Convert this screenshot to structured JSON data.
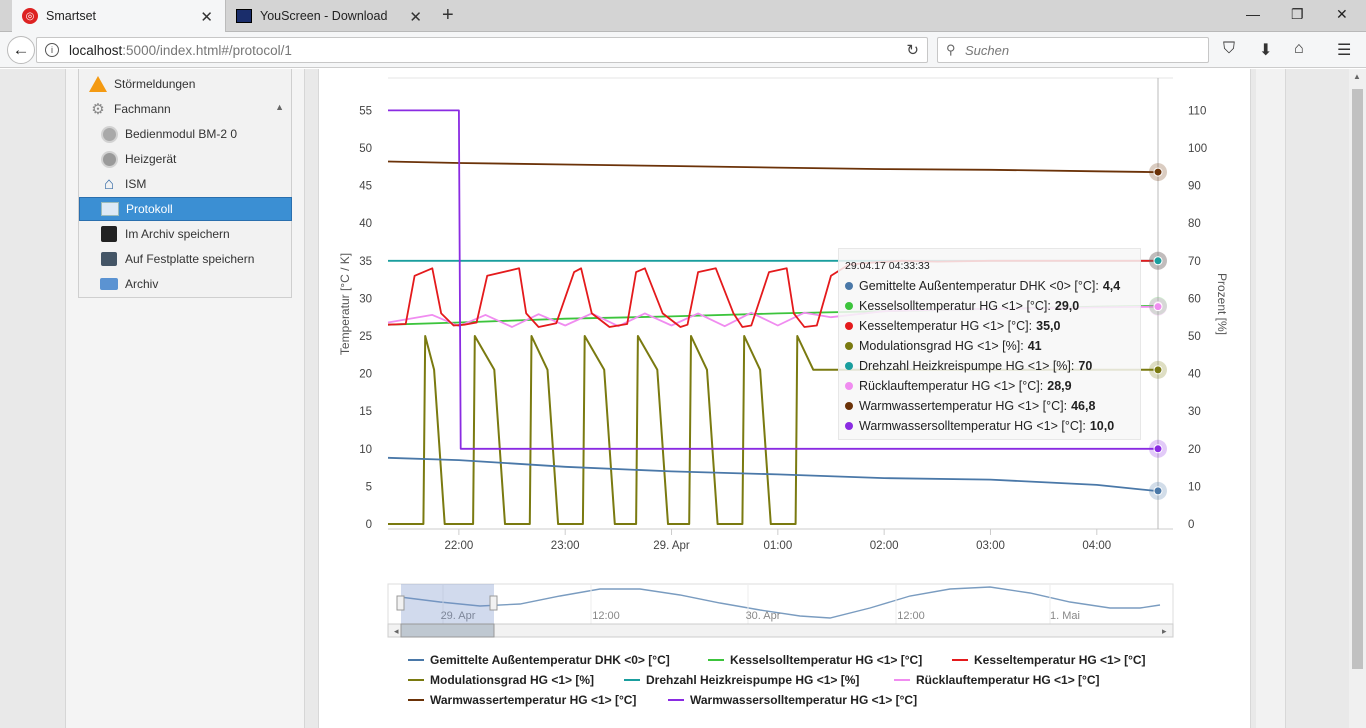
{
  "browser": {
    "tabs": [
      {
        "title": "Smartset",
        "active": true
      },
      {
        "title": "YouScreen - Download",
        "active": false
      }
    ],
    "url_host": "localhost",
    "url_rest": ":5000/index.html#/protocol/1",
    "search_placeholder": "Suchen"
  },
  "sidebar": {
    "items": [
      {
        "label": "Störmeldungen",
        "icon": "warning-icon",
        "level": 0
      },
      {
        "label": "Fachmann",
        "icon": "wrench-icon",
        "level": 0
      },
      {
        "label": "Bedienmodul BM-2 0",
        "icon": "module-icon",
        "level": 1
      },
      {
        "label": "Heizgerät",
        "icon": "boiler-icon",
        "level": 1
      },
      {
        "label": "ISM",
        "icon": "house-icon",
        "level": 1
      },
      {
        "label": "Protokoll",
        "icon": "chart-icon",
        "level": 1,
        "active": true
      },
      {
        "label": "Im Archiv speichern",
        "icon": "floppy-icon",
        "level": 1
      },
      {
        "label": "Auf Festplatte speichern",
        "icon": "save-disk-icon",
        "level": 1
      },
      {
        "label": "Archiv",
        "icon": "archive-icon",
        "level": 1
      }
    ]
  },
  "tooltip": {
    "header": "29.04.17 04:33:33",
    "rows": [
      {
        "label": "Gemittelte Außentemperatur DHK <0> [°C]:",
        "value": "4,4",
        "color": "#4a78a8"
      },
      {
        "label": "Kesselsolltemperatur HG <1> [°C]:",
        "value": "29,0",
        "color": "#3cc43c"
      },
      {
        "label": "Kesseltemperatur HG <1> [°C]:",
        "value": "35,0",
        "color": "#e41a1c"
      },
      {
        "label": "Modulationsgrad HG <1> [%]:",
        "value": "41",
        "color": "#7a7a10"
      },
      {
        "label": "Drehzahl Heizkreispumpe HG <1> [%]:",
        "value": "70",
        "color": "#1a9e9e"
      },
      {
        "label": "Rücklauftemperatur HG <1> [°C]:",
        "value": "28,9",
        "color": "#f08cf0"
      },
      {
        "label": "Warmwassertemperatur HG <1> [°C]:",
        "value": "46,8",
        "color": "#6b3208"
      },
      {
        "label": "Warmwassersolltemperatur HG <1> [°C]:",
        "value": "10,0",
        "color": "#8a2be2"
      }
    ]
  },
  "chart_data": {
    "type": "line",
    "ylabel": "Temperatur [°C / K]",
    "ylabel_right": "Prozent [%]",
    "ylim": [
      0,
      55
    ],
    "ylim_right": [
      0,
      110
    ],
    "yticks": [
      "0",
      "5",
      "10",
      "15",
      "20",
      "25",
      "30",
      "35",
      "40",
      "45",
      "50",
      "55"
    ],
    "yticks_right": [
      "0",
      "10",
      "20",
      "30",
      "40",
      "50",
      "60",
      "70",
      "80",
      "90",
      "100",
      "110"
    ],
    "xticks": [
      "22:00",
      "23:00",
      "29. Apr",
      "01:00",
      "02:00",
      "03:00",
      "04:00"
    ],
    "xlim": [
      "28.04.17 21:20",
      "29.04.17 04:43"
    ],
    "navigator_labels": [
      "29. Apr",
      "12:00",
      "30. Apr",
      "12:00",
      "1. Mai"
    ],
    "grid": true,
    "legend_position": "bottom",
    "series": [
      {
        "name": "Gemittelte Außentemperatur DHK <0> [°C]",
        "color": "#4a78a8",
        "axis": "left",
        "x": [
          "21:20",
          "22:00",
          "23:00",
          "00:00",
          "01:00",
          "02:00",
          "03:00",
          "04:00",
          "04:33"
        ],
        "values": [
          8.8,
          8.5,
          7.6,
          7.0,
          6.6,
          6.1,
          5.9,
          5.2,
          4.4
        ]
      },
      {
        "name": "Kesselsolltemperatur HG <1> [°C]",
        "color": "#3cc43c",
        "axis": "left",
        "x": [
          "21:20",
          "22:00",
          "23:00",
          "00:00",
          "01:00",
          "02:00",
          "03:00",
          "04:00",
          "04:33"
        ],
        "values": [
          26.5,
          26.8,
          27.3,
          27.6,
          28.0,
          28.3,
          28.6,
          28.9,
          29.0
        ]
      },
      {
        "name": "Kesseltemperatur HG <1> [°C]",
        "color": "#e41a1c",
        "axis": "left",
        "x": [
          "21:20",
          "21:30",
          "21:35",
          "21:45",
          "21:50",
          "21:57",
          "22:03",
          "22:10",
          "22:16",
          "22:34",
          "22:38",
          "22:45",
          "22:55",
          "23:05",
          "23:09",
          "23:15",
          "23:25",
          "23:35",
          "23:40",
          "23:45",
          "23:55",
          "00:05",
          "00:09",
          "00:15",
          "00:25",
          "00:35",
          "00:40",
          "00:45",
          "00:55",
          "01:05",
          "01:09",
          "01:15",
          "01:22",
          "01:30",
          "01:40",
          "01:55",
          "02:10",
          "02:30",
          "03:00",
          "03:30",
          "04:00",
          "04:33"
        ],
        "values": [
          26.5,
          26.6,
          33,
          34,
          28,
          26.4,
          26.5,
          26.8,
          33,
          34,
          28,
          26.2,
          26.7,
          33.5,
          34,
          28,
          26.2,
          26.6,
          33.5,
          34,
          28,
          26.2,
          26.5,
          33.5,
          34,
          28,
          26.2,
          26.4,
          33.5,
          34,
          28,
          26.2,
          26.4,
          33,
          34.5,
          34.8,
          35.0,
          34.9,
          35.0,
          35.0,
          35.0,
          35.0
        ]
      },
      {
        "name": "Modulationsgrad HG <1> [%]",
        "color": "#7a7a10",
        "axis": "right",
        "x": [
          "21:20",
          "21:40",
          "21:41",
          "21:46",
          "21:52",
          "22:08",
          "22:09",
          "22:20",
          "22:26",
          "22:40",
          "22:41",
          "22:50",
          "22:56",
          "23:10",
          "23:11",
          "23:22",
          "23:28",
          "23:40",
          "23:41",
          "23:52",
          "23:58",
          "00:10",
          "00:11",
          "00:20",
          "00:26",
          "00:40",
          "00:41",
          "00:50",
          "00:56",
          "01:10",
          "01:11",
          "01:20",
          "01:50",
          "02:10",
          "02:30",
          "03:00",
          "03:30",
          "04:00",
          "04:33"
        ],
        "values": [
          0,
          0,
          50,
          41,
          0,
          0,
          50,
          41,
          0,
          0,
          50,
          41,
          0,
          0,
          50,
          41,
          0,
          0,
          50,
          41,
          0,
          0,
          50,
          41,
          0,
          0,
          50,
          41,
          0,
          0,
          50,
          41,
          41,
          41,
          41,
          41,
          41,
          41,
          41
        ]
      },
      {
        "name": "Drehzahl Heizkreispumpe HG <1> [%]",
        "color": "#1a9e9e",
        "axis": "right",
        "x": [
          "21:20",
          "22:00",
          "23:00",
          "00:00",
          "01:00",
          "02:00",
          "03:00",
          "04:00",
          "04:33"
        ],
        "values": [
          70,
          70,
          70,
          70,
          70,
          70,
          70,
          70,
          70
        ]
      },
      {
        "name": "Rücklauftemperatur HG <1> [°C]",
        "color": "#f08cf0",
        "axis": "left",
        "x": [
          "21:20",
          "21:45",
          "22:00",
          "22:15",
          "22:30",
          "22:45",
          "23:00",
          "23:15",
          "23:30",
          "23:45",
          "00:00",
          "00:15",
          "00:30",
          "00:45",
          "01:00",
          "01:15",
          "01:30",
          "02:00",
          "02:30",
          "03:00",
          "03:30",
          "04:00",
          "04:33"
        ],
        "values": [
          26.8,
          27.8,
          26.3,
          27.8,
          26.2,
          27.9,
          26.4,
          28.0,
          26.3,
          28.0,
          26.4,
          28.0,
          26.3,
          28.1,
          26.4,
          28.1,
          27.5,
          28.3,
          28.5,
          28.6,
          28.7,
          28.8,
          28.9
        ]
      },
      {
        "name": "Warmwassertemperatur HG <1> [°C]",
        "color": "#6b3208",
        "axis": "left",
        "x": [
          "21:20",
          "22:00",
          "23:00",
          "00:00",
          "01:00",
          "02:00",
          "03:00",
          "04:00",
          "04:33"
        ],
        "values": [
          48.2,
          48.0,
          47.8,
          47.6,
          47.4,
          47.2,
          47.1,
          46.9,
          46.8
        ]
      },
      {
        "name": "Warmwassersolltemperatur HG <1> [°C]",
        "color": "#8a2be2",
        "axis": "left",
        "x": [
          "21:20",
          "22:00",
          "22:01",
          "23:00",
          "00:00",
          "01:00",
          "02:00",
          "03:00",
          "04:00",
          "04:33"
        ],
        "values": [
          55,
          55,
          10,
          10,
          10,
          10,
          10,
          10,
          10,
          10
        ]
      }
    ]
  }
}
